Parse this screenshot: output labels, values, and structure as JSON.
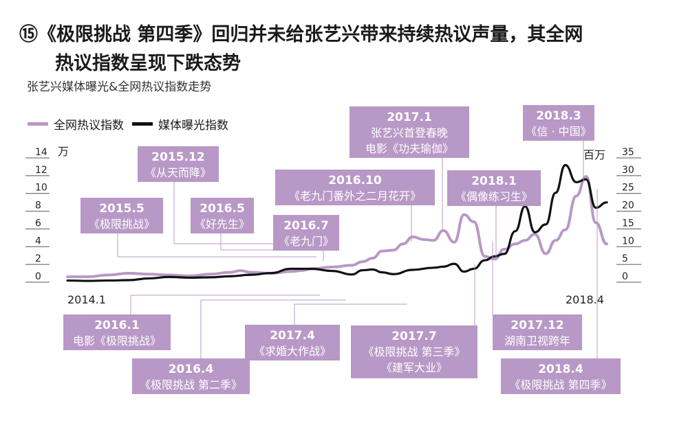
{
  "title": {
    "line1": "⑮《极限挑战 第四季》回归并未给张艺兴带来持续热议声量，其全网",
    "line2": "热议指数呈现下跌态势"
  },
  "subtitle": "张艺兴媒体曝光&全网热议指数走势",
  "colors": {
    "purple": "#b898c6",
    "black": "#111111",
    "box": "#b898c6"
  },
  "chart_data": {
    "type": "line",
    "title": "张艺兴媒体曝光&全网热议指数走势",
    "legend_position": "top-left",
    "x_start": "2014.1",
    "x_end": "2018.4",
    "left_axis": {
      "unit": "万",
      "ticks": [
        "0",
        "2",
        "4",
        "6",
        "8",
        "10",
        "12",
        "14"
      ],
      "range": [
        0,
        14
      ]
    },
    "right_axis": {
      "unit": "百万",
      "ticks": [
        "0",
        "5",
        "10",
        "15",
        "20",
        "25",
        "30",
        "35"
      ],
      "range": [
        0,
        35
      ]
    },
    "series": [
      {
        "name": "全网热议指数",
        "axis": "left",
        "color": "#b898c6",
        "x": [
          2014.0,
          2014.17,
          2014.33,
          2014.5,
          2014.67,
          2014.83,
          2015.0,
          2015.17,
          2015.33,
          2015.42,
          2015.5,
          2015.67,
          2015.83,
          2015.92,
          2016.0,
          2016.17,
          2016.33,
          2016.42,
          2016.5,
          2016.58,
          2016.67,
          2016.75,
          2016.83,
          2016.92,
          2017.0,
          2017.08,
          2017.17,
          2017.25,
          2017.33,
          2017.42,
          2017.5,
          2017.58,
          2017.67,
          2017.75,
          2017.83,
          2017.92,
          2018.0,
          2018.08,
          2018.17,
          2018.25,
          2018.33,
          2018.42
        ],
        "y": [
          0.3,
          0.3,
          0.5,
          0.7,
          0.6,
          0.5,
          0.4,
          0.6,
          0.8,
          1.0,
          0.8,
          0.7,
          0.9,
          1.0,
          1.2,
          1.4,
          1.6,
          2.0,
          2.4,
          3.2,
          3.3,
          4.0,
          4.8,
          4.5,
          4.4,
          5.5,
          4.2,
          7.3,
          6.5,
          2.6,
          2.3,
          3.4,
          4.0,
          4.4,
          5.1,
          2.9,
          4.4,
          5.6,
          9.4,
          11.6,
          6.4,
          4.0
        ]
      },
      {
        "name": "媒体曝光指数",
        "axis": "right",
        "color": "#111111",
        "x": [
          2014.0,
          2014.17,
          2014.33,
          2014.5,
          2014.67,
          2014.83,
          2015.0,
          2015.17,
          2015.33,
          2015.5,
          2015.67,
          2015.83,
          2016.0,
          2016.17,
          2016.33,
          2016.42,
          2016.5,
          2016.58,
          2016.67,
          2016.83,
          2017.0,
          2017.08,
          2017.17,
          2017.25,
          2017.33,
          2017.42,
          2017.5,
          2017.58,
          2017.67,
          2017.75,
          2017.83,
          2017.92,
          2018.0,
          2018.08,
          2018.17,
          2018.25,
          2018.33,
          2018.42
        ],
        "y": [
          -0.3,
          -0.4,
          -0.3,
          -0.2,
          0.3,
          0.7,
          0.5,
          0.6,
          0.9,
          1.3,
          1.8,
          3.0,
          3.0,
          2.4,
          1.4,
          2.6,
          2.8,
          2.0,
          1.5,
          2.7,
          3.3,
          3.6,
          4.4,
          2.2,
          3.0,
          5.4,
          6.5,
          7.2,
          13.6,
          20.6,
          13.3,
          15.5,
          24.4,
          32.2,
          27.4,
          28.2,
          20.2,
          21.7
        ]
      }
    ],
    "annotations": [
      {
        "date": "2015.5",
        "text": "《极限挑战》"
      },
      {
        "date": "2015.12",
        "text": "《从天而降》"
      },
      {
        "date": "2016.5",
        "text": "《好先生》"
      },
      {
        "date": "2016.7",
        "text": "《老九门》"
      },
      {
        "date": "2016.10",
        "text": "《老九门番外之二月花开》"
      },
      {
        "date": "2017.1",
        "text": "张艺兴首登春晚",
        "text2": "电影《功夫瑜伽》"
      },
      {
        "date": "2018.1",
        "text": "《偶像练习生》"
      },
      {
        "date": "2018.3",
        "text": "《信 · 中国》"
      },
      {
        "date": "2016.1",
        "text": "电影《极限挑战》"
      },
      {
        "date": "2016.4",
        "text": "《极限挑战 第二季》"
      },
      {
        "date": "2017.4",
        "text": "《求婚大作战》"
      },
      {
        "date": "2017.7",
        "text": "《极限挑战 第三季》",
        "text2": "《建军大业》"
      },
      {
        "date": "2017.12",
        "text": "湖南卫视跨年"
      },
      {
        "date": "2018.4",
        "text": "《极限挑战 第四季》"
      }
    ]
  }
}
